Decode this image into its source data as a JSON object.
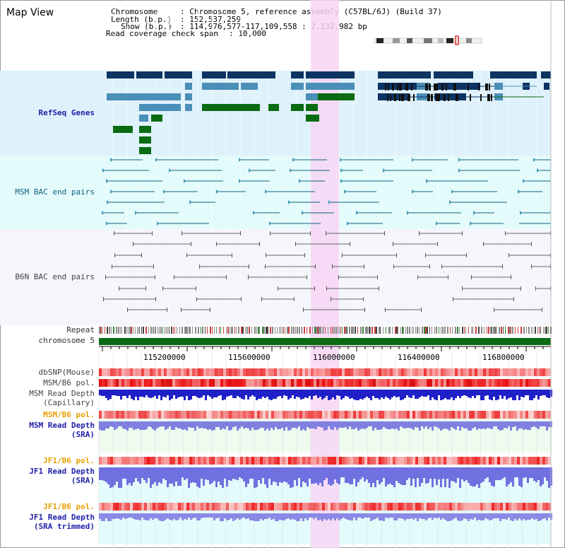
{
  "view_title": "Map View",
  "header": {
    "chromosome_label": "Chromosome",
    "chromosome_value": ": Chromosome 5, reference assembly (C57BL/6J) (Build 37)",
    "length_label": "Length (b.p.)",
    "length_value": ": 152,537,259",
    "show_label": "Show (b.p.)",
    "show_value": ": 114,976,577-117,109,558 : 2,132,982 bp",
    "coverage_label": "Read coverage check span",
    "coverage_value": ": 10,000"
  },
  "tracks": {
    "refseq": "RefSeq Genes",
    "msm_bac": "MSM BAC end pairs",
    "b6n_bac": "B6N BAC end pairs",
    "repeat": "Repeat",
    "chromosome": "chromosome 5",
    "dbsnp": "dbSNP(Mouse)",
    "msm_b6_pol": "MSM/B6 pol.",
    "msm_read_cap_1": "MSM Read Depth",
    "msm_read_cap_2": "(Capillary)",
    "msm_b6_pol2": "MSM/B6 pol.",
    "msm_read_sra_1": "MSM Read Depth",
    "msm_read_sra_2": "(SRA)",
    "jf1_b6_pol": "JF1/B6 pol.",
    "jf1_read_sra_1": "JF1 Read Depth",
    "jf1_read_sra_2": "(SRA)",
    "jf1_b6_pol2": "JF1/B6 pol.",
    "jf1_trim_1": "JF1 Read Depth",
    "jf1_trim_2": "(SRA trimmed)"
  },
  "ruler": {
    "ticks": [
      "115200000",
      "115600000",
      "116000000",
      "116400000",
      "116800000"
    ]
  },
  "colors": {
    "refseq_bg": "#dff1fb",
    "msm_bg": "#e3fbfb",
    "b6n_bg": "#f4f6fb",
    "highlight": "#f7d6f4",
    "gene_navy": "#0d3463",
    "gene_steel": "#4a8fb8",
    "gene_green": "#0a6b12",
    "chromosome_bar": "#0a6b12"
  }
}
